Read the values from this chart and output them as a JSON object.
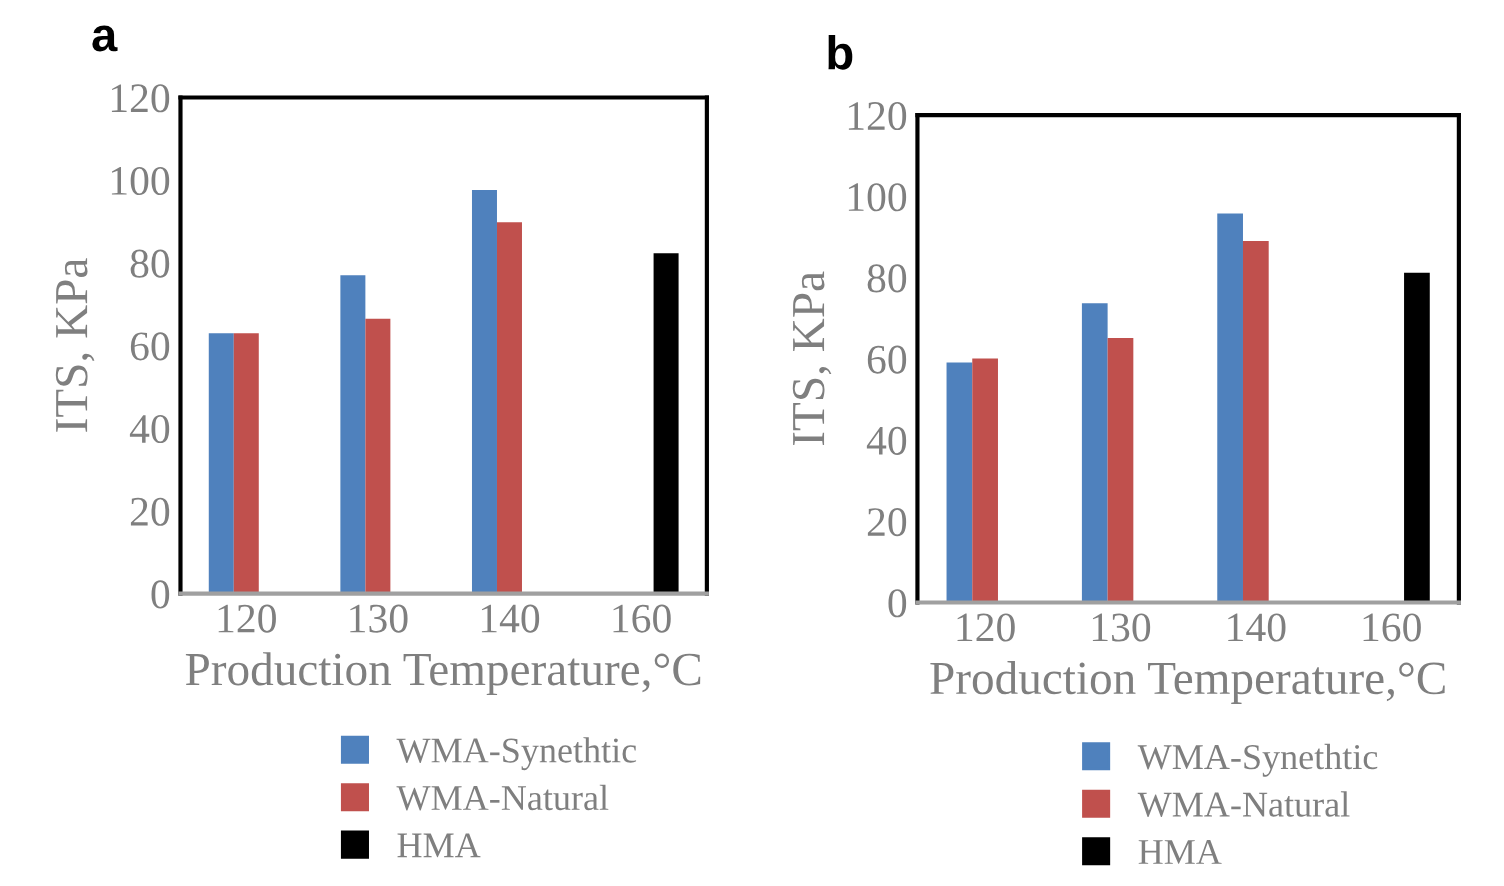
{
  "chart_data": [
    {
      "type": "bar",
      "title": "a",
      "categories": [
        "120",
        "130",
        "140",
        "160"
      ],
      "xlabel": "Production Temperature,°C",
      "ylabel": "ITS, KPa",
      "ylim": [
        0,
        120
      ],
      "yticks": [
        0,
        20,
        40,
        60,
        80,
        100,
        120
      ],
      "grid": false,
      "legend": "bottom",
      "series": [
        {
          "name": "WMA-Synethtic",
          "color": "#4f81bd",
          "values": [
            63,
            77,
            97.6,
            null
          ]
        },
        {
          "name": "WMA-Natural",
          "color": "#c0504d",
          "values": [
            63,
            66.5,
            89.8,
            null
          ]
        },
        {
          "name": "HMA",
          "color": "#000000",
          "values": [
            null,
            null,
            null,
            82.3
          ]
        }
      ]
    },
    {
      "type": "bar",
      "title": "b",
      "categories": [
        "120",
        "130",
        "140",
        "160"
      ],
      "xlabel": "Production Temperature,°C",
      "ylabel": "ITS, KPa",
      "ylim": [
        0,
        120
      ],
      "yticks": [
        0,
        20,
        40,
        60,
        80,
        100,
        120
      ],
      "grid": false,
      "legend": "bottom",
      "series": [
        {
          "name": "WMA-Synethtic",
          "color": "#4f81bd",
          "values": [
            59.1,
            73.7,
            95.8,
            null
          ]
        },
        {
          "name": "WMA-Natural",
          "color": "#c0504d",
          "values": [
            60.1,
            65.1,
            89,
            null
          ]
        },
        {
          "name": "HMA",
          "color": "#000000",
          "values": [
            null,
            null,
            null,
            81.2
          ]
        }
      ]
    }
  ]
}
